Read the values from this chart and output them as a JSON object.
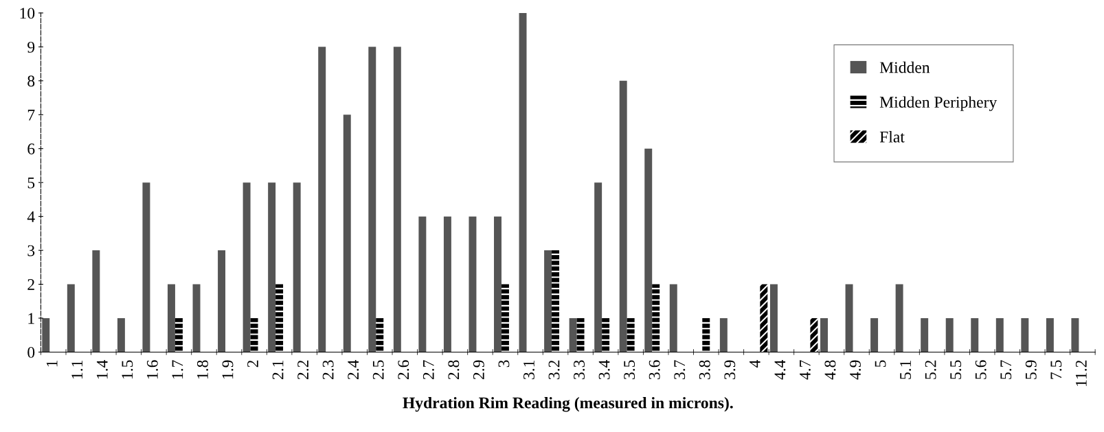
{
  "chart_data": {
    "type": "bar",
    "xlabel": "Hydration Rim Reading (measured in microns).",
    "categories": [
      "1",
      "1.1",
      "1.4",
      "1.5",
      "1.6",
      "1.7",
      "1.8",
      "1.9",
      "2",
      "2.1",
      "2.2",
      "2.3",
      "2.4",
      "2.5",
      "2.6",
      "2.7",
      "2.8",
      "2.9",
      "3",
      "3.1",
      "3.2",
      "3.3",
      "3.4",
      "3.5",
      "3.6",
      "3.7",
      "3.8",
      "3.9",
      "4",
      "4.4",
      "4.7",
      "4.8",
      "4.9",
      "5",
      "5.1",
      "5.2",
      "5.5",
      "5.6",
      "5.7",
      "5.9",
      "7.5",
      "11.2"
    ],
    "series": [
      {
        "name": "Midden",
        "color": "#555555",
        "values": [
          1,
          2,
          3,
          1,
          5,
          2,
          2,
          3,
          5,
          5,
          5,
          9,
          7,
          9,
          9,
          4,
          4,
          4,
          4,
          10,
          3,
          1,
          5,
          8,
          6,
          2,
          0,
          1,
          0,
          2,
          0,
          1,
          2,
          1,
          2,
          1,
          1,
          1,
          1,
          1,
          1,
          1
        ]
      },
      {
        "name": "Midden Periphery",
        "color": "#000000",
        "values": [
          0,
          0,
          0,
          0,
          0,
          1,
          0,
          0,
          1,
          2,
          0,
          0,
          0,
          1,
          0,
          0,
          0,
          0,
          2,
          0,
          3,
          1,
          1,
          1,
          2,
          0,
          1,
          0,
          0,
          0,
          0,
          0,
          0,
          0,
          0,
          0,
          0,
          0,
          0,
          0,
          0,
          0
        ]
      },
      {
        "name": "Flat",
        "color": "#000000",
        "values": [
          0,
          0,
          0,
          0,
          0,
          0,
          0,
          0,
          0,
          0,
          0,
          0,
          0,
          0,
          0,
          0,
          0,
          0,
          0,
          0,
          0,
          0,
          0,
          0,
          0,
          0,
          0,
          0,
          2,
          0,
          1,
          0,
          0,
          0,
          0,
          0,
          0,
          0,
          0,
          0,
          0,
          0
        ]
      }
    ],
    "ylim": [
      0,
      10
    ],
    "yticks": [
      0,
      1,
      2,
      3,
      4,
      5,
      6,
      7,
      8,
      9,
      10
    ],
    "grid": false,
    "legend": "top right"
  }
}
